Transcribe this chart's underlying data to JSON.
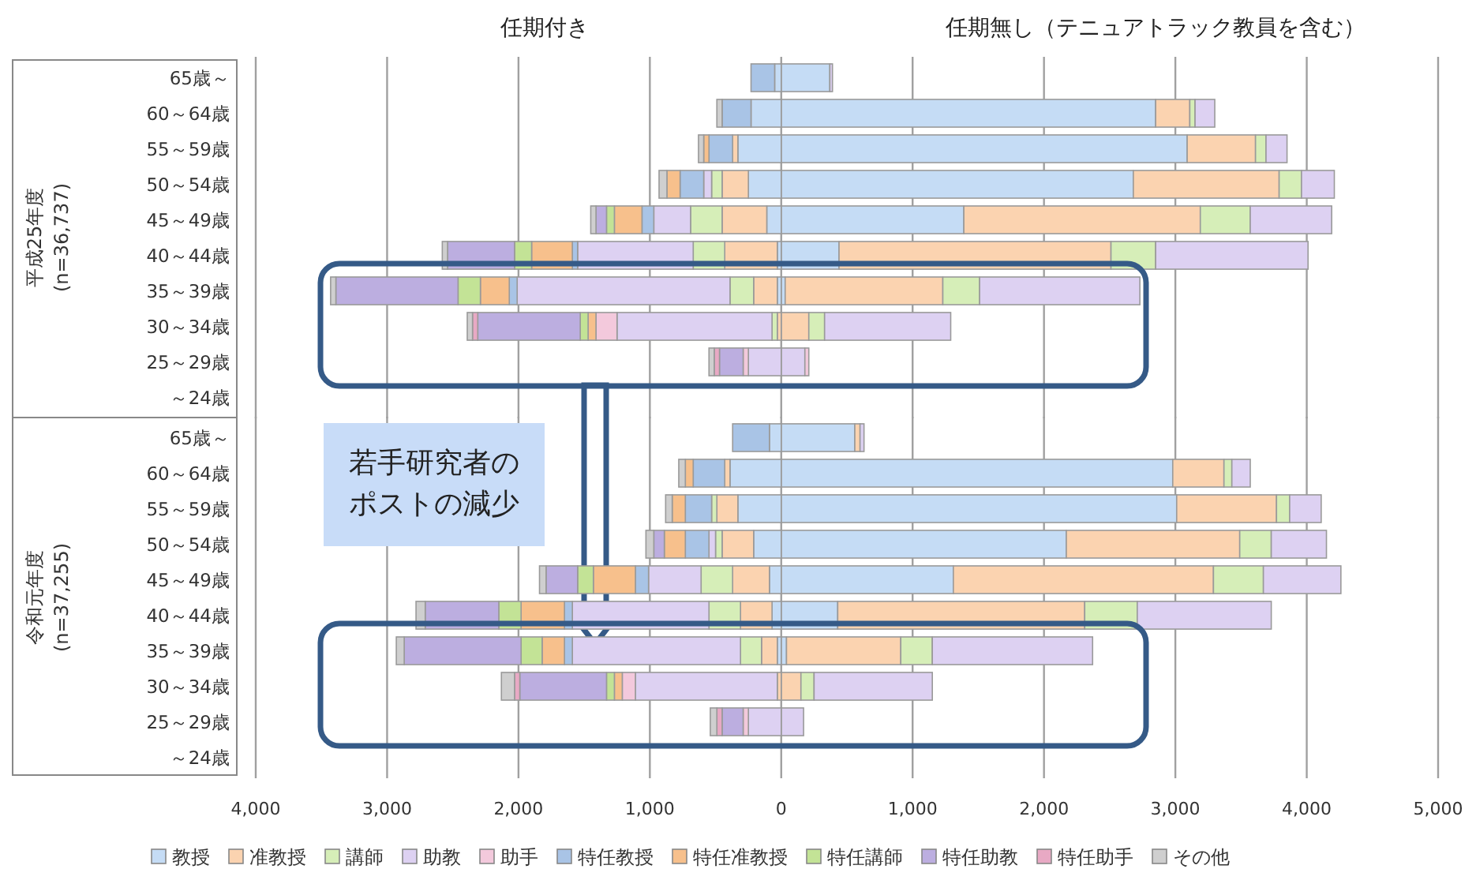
{
  "chart_data": [
    {
      "type": "bar",
      "orientation": "horizontal",
      "stacked": true,
      "ylabel": "平成25年度 (n=36,737)",
      "annotations": [
        "任期付き",
        "任期無し（テニュアトラック教員を含む）"
      ],
      "categories": [
        "65歳～",
        "60～64歳",
        "55～59歳",
        "50～54歳",
        "45～49歳",
        "40～44歳",
        "35～39歳",
        "30～34歳",
        "25～29歳",
        "～24歳"
      ],
      "xlim": [
        -4000,
        5000
      ],
      "xticks": [
        {
          "value": -4000,
          "label": null
        },
        {
          "value": -3000,
          "label": null
        },
        {
          "value": -2000,
          "label": null
        },
        {
          "value": -1000,
          "label": null
        },
        {
          "value": 0,
          "label": null
        },
        {
          "value": 1000,
          "label": null
        },
        {
          "value": 2000,
          "label": null
        },
        {
          "value": 3000,
          "label": null
        },
        {
          "value": 4000,
          "label": null
        },
        {
          "value": 5000,
          "label": null
        }
      ],
      "grid": "x",
      "tick_labels": "y",
      "series": [
        {
          "color": "#c5dcf5",
          "values": [
            370,
            2850,
            3090,
            2680,
            1390,
            440,
            30,
            0,
            0,
            0
          ]
        },
        {
          "color": "#fbd3b0",
          "values": [
            0,
            260,
            520,
            1110,
            1800,
            2070,
            1200,
            210,
            0,
            0
          ]
        },
        {
          "color": "#d6eeb8",
          "values": [
            0,
            40,
            80,
            170,
            380,
            340,
            280,
            120,
            0,
            0
          ]
        },
        {
          "color": "#ddd1f2",
          "values": [
            20,
            150,
            160,
            250,
            620,
            1160,
            1220,
            960,
            180,
            0
          ]
        },
        {
          "color": "#f3c9dc",
          "values": [
            0,
            0,
            0,
            0,
            0,
            0,
            0,
            0,
            30,
            0
          ]
        },
        {
          "color": "#c5dcf5",
          "values": [
            -50,
            -230,
            -330,
            -250,
            -110,
            -30,
            -30,
            0,
            0,
            0
          ]
        },
        {
          "color": "#fbd3b0",
          "values": [
            0,
            0,
            -40,
            -200,
            -340,
            -400,
            -180,
            -30,
            0,
            0
          ]
        },
        {
          "color": "#d6eeb8",
          "values": [
            0,
            0,
            0,
            -80,
            -240,
            -240,
            -180,
            -40,
            0,
            0
          ]
        },
        {
          "color": "#ddd1f2",
          "values": [
            0,
            0,
            0,
            -60,
            -280,
            -880,
            -1620,
            -1180,
            -250,
            0
          ]
        },
        {
          "color": "#f3c9dc",
          "values": [
            0,
            0,
            0,
            0,
            0,
            0,
            0,
            -160,
            -40,
            0
          ]
        },
        {
          "color": "#a9c4e6",
          "values": [
            -180,
            -220,
            -180,
            -180,
            -90,
            -40,
            -60,
            0,
            0,
            0
          ]
        },
        {
          "color": "#f7c08c",
          "values": [
            0,
            0,
            -40,
            -100,
            -210,
            -310,
            -220,
            -60,
            0,
            0
          ]
        },
        {
          "color": "#c3e396",
          "values": [
            0,
            0,
            0,
            0,
            -60,
            -130,
            -170,
            -60,
            0,
            0
          ]
        },
        {
          "color": "#bcaee0",
          "values": [
            0,
            0,
            0,
            0,
            -80,
            -510,
            -930,
            -780,
            -180,
            0
          ]
        },
        {
          "color": "#e8a9c4",
          "values": [
            0,
            0,
            0,
            0,
            0,
            0,
            0,
            -40,
            -40,
            0
          ]
        },
        {
          "color": "#cfcfcf",
          "values": [
            0,
            -40,
            -40,
            -60,
            -40,
            -40,
            -40,
            -40,
            -40,
            0
          ]
        }
      ]
    },
    {
      "type": "bar",
      "orientation": "horizontal",
      "stacked": true,
      "ylabel": "令和元年度 (n=37,255)",
      "annotations": [
        "若手研究者のポストの減少"
      ],
      "categories": [
        "65歳～",
        "60～64歳",
        "55～59歳",
        "50～54歳",
        "45～49歳",
        "40～44歳",
        "35～39歳",
        "30～34歳",
        "25～29歳",
        "～24歳"
      ],
      "xlim": [
        -4000,
        5000
      ],
      "xticks": [
        {
          "value": -4000,
          "label": "4,000"
        },
        {
          "value": -3000,
          "label": "3,000"
        },
        {
          "value": -2000,
          "label": "2,000"
        },
        {
          "value": -1000,
          "label": "1,000"
        },
        0,
        {
          "value": 1000,
          "label": "1,000"
        },
        {
          "value": 2000,
          "label": "2,000"
        },
        {
          "value": 3000,
          "label": "3,000"
        },
        {
          "value": 4000,
          "label": "4,000"
        },
        {
          "value": 5000,
          "label": "5,000"
        }
      ],
      "grid": "x",
      "legend": "bottom",
      "series": [
        {
          "color": "#c5dcf5",
          "values": [
            560,
            2980,
            3010,
            2170,
            1310,
            430,
            40,
            0,
            0,
            0
          ]
        },
        {
          "color": "#fbd3b0",
          "values": [
            40,
            390,
            760,
            1320,
            1980,
            1880,
            870,
            150,
            0,
            0
          ]
        },
        {
          "color": "#d6eeb8",
          "values": [
            0,
            60,
            100,
            240,
            380,
            400,
            240,
            100,
            0,
            0
          ]
        },
        {
          "color": "#ddd1f2",
          "values": [
            30,
            140,
            240,
            420,
            590,
            1020,
            1220,
            900,
            170,
            0
          ]
        },
        {
          "name": "教授",
          "color": "#c5dcf5",
          "values": [
            -90,
            -390,
            -330,
            -210,
            -90,
            -70,
            -30,
            0,
            0,
            0
          ]
        },
        {
          "name": "准教授",
          "color": "#fbd3b0",
          "values": [
            0,
            -40,
            -160,
            -240,
            -280,
            -240,
            -120,
            -30,
            0,
            0
          ]
        },
        {
          "name": "講師",
          "color": "#d6eeb8",
          "values": [
            0,
            0,
            -40,
            -50,
            -240,
            -240,
            -160,
            0,
            0,
            0
          ]
        },
        {
          "name": "助教",
          "color": "#ddd1f2",
          "values": [
            0,
            0,
            0,
            -50,
            -400,
            -1040,
            -1280,
            -1080,
            -250,
            0
          ]
        },
        {
          "name": "助手",
          "color": "#f3c9dc",
          "values": [
            0,
            0,
            0,
            0,
            0,
            0,
            0,
            -100,
            -40,
            0
          ]
        },
        {
          "name": "特任教授",
          "color": "#a9c4e6",
          "values": [
            -280,
            -240,
            -200,
            -180,
            -100,
            -60,
            -60,
            0,
            0,
            0
          ]
        },
        {
          "name": "特任准教授",
          "color": "#f7c08c",
          "values": [
            0,
            -60,
            -100,
            -160,
            -320,
            -330,
            -170,
            -60,
            0,
            0
          ]
        },
        {
          "name": "特任講師",
          "color": "#c3e396",
          "values": [
            0,
            0,
            0,
            0,
            -120,
            -170,
            -160,
            -60,
            0,
            0
          ]
        },
        {
          "name": "特任助教",
          "color": "#bcaee0",
          "values": [
            0,
            0,
            0,
            -80,
            -240,
            -560,
            -890,
            -660,
            -160,
            0
          ]
        },
        {
          "name": "特任助手",
          "color": "#e8a9c4",
          "values": [
            0,
            0,
            0,
            0,
            0,
            0,
            0,
            -40,
            -40,
            0
          ]
        },
        {
          "name": "その他",
          "color": "#cfcfcf",
          "values": [
            0,
            -50,
            -50,
            -60,
            -50,
            -70,
            -60,
            -100,
            -50,
            0
          ]
        }
      ]
    }
  ]
}
